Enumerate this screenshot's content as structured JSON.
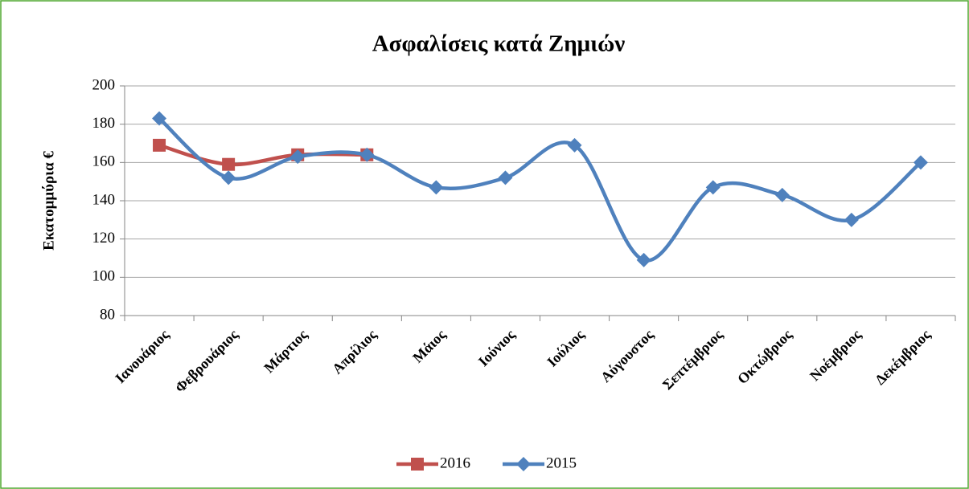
{
  "chart_data": {
    "type": "line",
    "title": "Ασφαλίσεις κατά Ζημιών",
    "y_label": "Εκατομμύρια  €",
    "categories": [
      "Ιανουάριος",
      "Φεβρουάριος",
      "Μάρτιος",
      "Απρίλιος",
      "Μάιος",
      "Ιούνιος",
      "Ιούλιος",
      "Αύγουστος",
      "Σεπτέμβριος",
      "Οκτώβριος",
      "Νοέμβριος",
      "Δεκέμβριος"
    ],
    "series": [
      {
        "name": "2016",
        "color": "#c0504d",
        "marker": "square",
        "values": [
          169,
          159,
          164,
          164,
          null,
          null,
          null,
          null,
          null,
          null,
          null,
          null
        ]
      },
      {
        "name": "2015",
        "color": "#4f81bd",
        "marker": "diamond",
        "values": [
          183,
          152,
          163,
          164,
          147,
          152,
          169,
          109,
          147,
          143,
          130,
          160
        ]
      }
    ],
    "ylim": [
      80,
      200
    ],
    "yticks": [
      80,
      100,
      120,
      140,
      160,
      180,
      200
    ],
    "grid": true,
    "smooth": true,
    "legend": "bottom"
  }
}
